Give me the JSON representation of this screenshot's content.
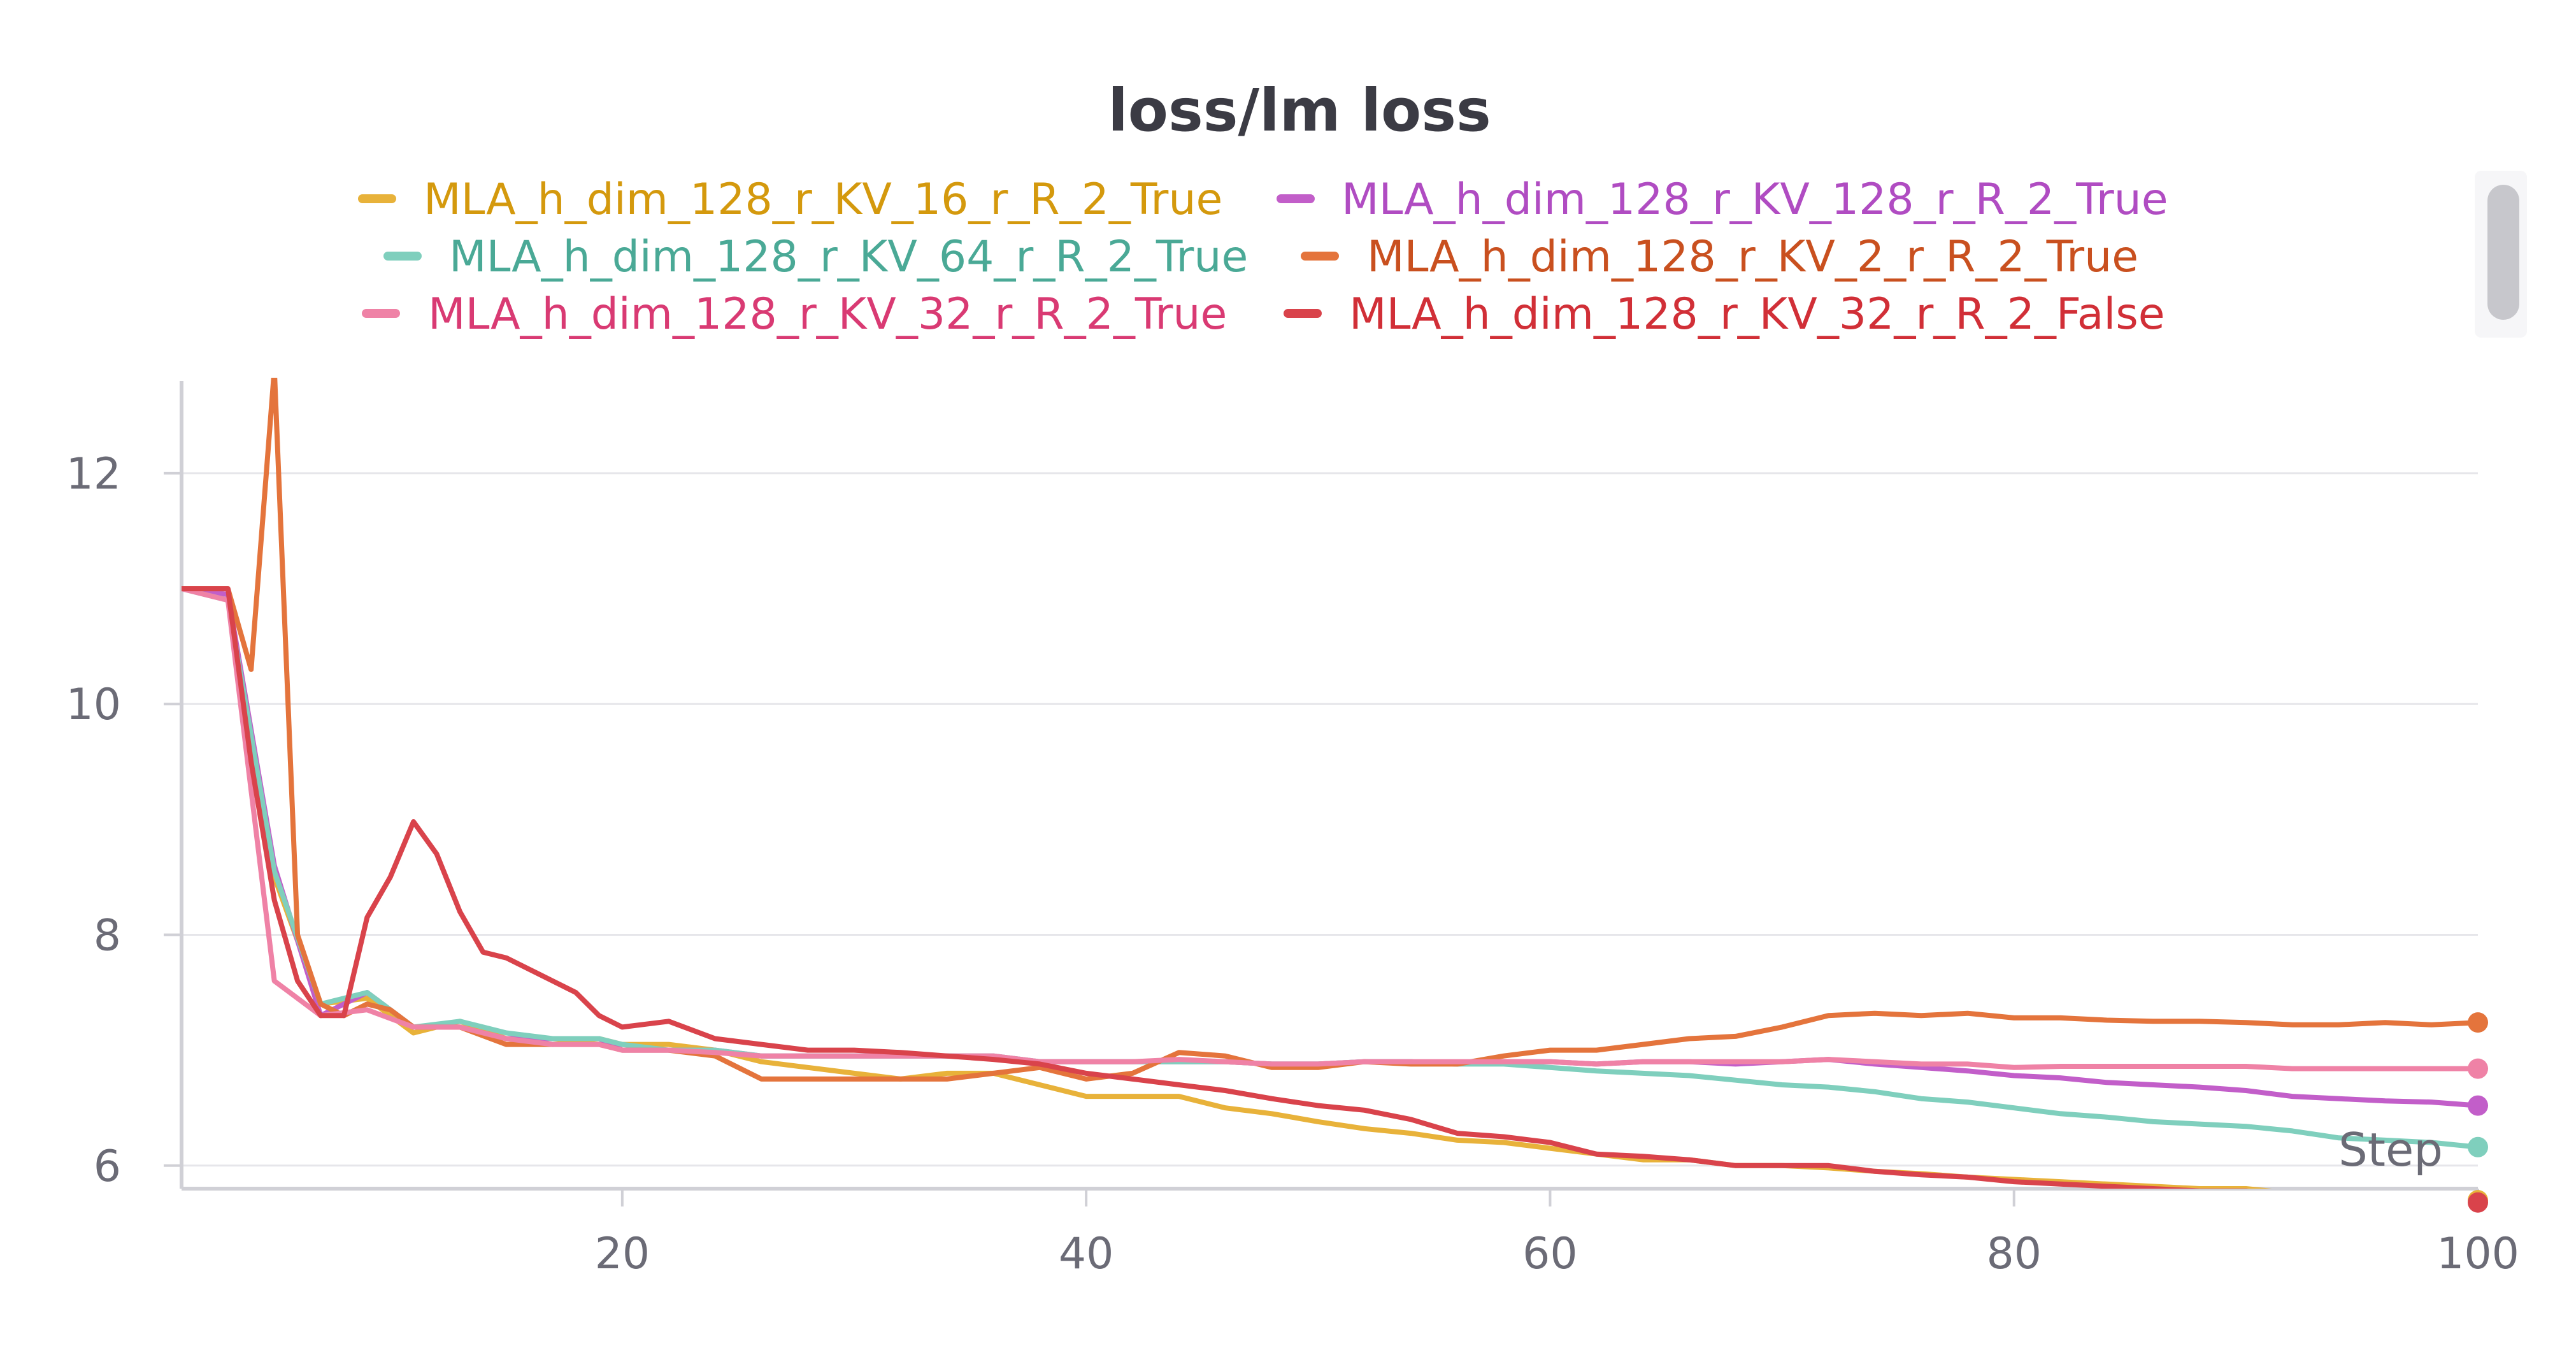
{
  "chart_data": {
    "type": "line",
    "title": "loss/lm loss",
    "xlabel": "Step",
    "ylabel": "",
    "xlim": [
      1,
      100
    ],
    "ylim": [
      5.8,
      12.8
    ],
    "xticks": [
      20,
      40,
      60,
      80,
      100
    ],
    "yticks": [
      6,
      8,
      10,
      12
    ],
    "grid": "horizontal",
    "legend_position": "top",
    "series": [
      {
        "name": "MLA_h_dim_128_r_KV_16_r_R_2_True",
        "color": "#e8b23a",
        "label_color": "#d4990d",
        "x": [
          1,
          3,
          5,
          7,
          9,
          11,
          13,
          15,
          17,
          19,
          20,
          22,
          24,
          26,
          28,
          30,
          32,
          34,
          36,
          38,
          40,
          42,
          44,
          46,
          48,
          50,
          52,
          54,
          56,
          58,
          60,
          62,
          64,
          66,
          68,
          70,
          72,
          74,
          76,
          78,
          80,
          82,
          84,
          86,
          88,
          90,
          92,
          94,
          96,
          98,
          100
        ],
        "values": [
          11.0,
          10.95,
          8.5,
          7.4,
          7.45,
          7.15,
          7.25,
          7.1,
          7.05,
          7.1,
          7.05,
          7.05,
          7.0,
          6.9,
          6.85,
          6.8,
          6.75,
          6.8,
          6.8,
          6.7,
          6.6,
          6.6,
          6.6,
          6.5,
          6.45,
          6.38,
          6.32,
          6.28,
          6.22,
          6.2,
          6.15,
          6.1,
          6.05,
          6.05,
          6.0,
          6.0,
          5.98,
          5.95,
          5.93,
          5.9,
          5.88,
          5.86,
          5.84,
          5.82,
          5.8,
          5.8,
          5.76,
          5.74,
          5.74,
          5.72,
          5.7
        ]
      },
      {
        "name": "MLA_h_dim_128_r_KV_128_r_R_2_True",
        "color": "#c25ec9",
        "label_color": "#b04cc2",
        "x": [
          1,
          3,
          5,
          7,
          9,
          11,
          13,
          15,
          17,
          19,
          20,
          22,
          24,
          26,
          28,
          30,
          32,
          34,
          36,
          38,
          40,
          42,
          44,
          46,
          48,
          50,
          52,
          54,
          56,
          58,
          60,
          62,
          64,
          66,
          68,
          70,
          72,
          74,
          76,
          78,
          80,
          82,
          84,
          86,
          88,
          90,
          92,
          94,
          96,
          98,
          100
        ],
        "values": [
          11.0,
          10.95,
          8.6,
          7.3,
          7.5,
          7.2,
          7.2,
          7.1,
          7.1,
          7.1,
          7.0,
          7.0,
          7.0,
          6.95,
          6.95,
          6.95,
          6.95,
          6.95,
          6.95,
          6.9,
          6.9,
          6.9,
          6.9,
          6.9,
          6.88,
          6.88,
          6.9,
          6.9,
          6.88,
          6.9,
          6.9,
          6.88,
          6.9,
          6.9,
          6.88,
          6.9,
          6.92,
          6.88,
          6.85,
          6.82,
          6.78,
          6.76,
          6.72,
          6.7,
          6.68,
          6.65,
          6.6,
          6.58,
          6.56,
          6.55,
          6.52
        ]
      },
      {
        "name": "MLA_h_dim_128_r_KV_64_r_R_2_True",
        "color": "#7fcfbd",
        "label_color": "#4aa996",
        "x": [
          1,
          3,
          5,
          7,
          9,
          11,
          13,
          15,
          17,
          19,
          20,
          22,
          24,
          26,
          28,
          30,
          32,
          34,
          36,
          38,
          40,
          42,
          44,
          46,
          48,
          50,
          52,
          54,
          56,
          58,
          60,
          62,
          64,
          66,
          68,
          70,
          72,
          74,
          76,
          78,
          80,
          82,
          84,
          86,
          88,
          90,
          92,
          94,
          96,
          98,
          100
        ],
        "values": [
          11.0,
          10.9,
          8.55,
          7.4,
          7.5,
          7.2,
          7.25,
          7.15,
          7.1,
          7.1,
          7.05,
          7.0,
          7.0,
          6.95,
          6.95,
          6.95,
          6.95,
          6.95,
          6.95,
          6.9,
          6.9,
          6.9,
          6.9,
          6.9,
          6.88,
          6.88,
          6.9,
          6.9,
          6.88,
          6.88,
          6.85,
          6.82,
          6.8,
          6.78,
          6.74,
          6.7,
          6.68,
          6.64,
          6.58,
          6.55,
          6.5,
          6.45,
          6.42,
          6.38,
          6.36,
          6.34,
          6.3,
          6.24,
          6.22,
          6.2,
          6.16
        ]
      },
      {
        "name": "MLA_h_dim_128_r_KV_2_r_R_2_True",
        "color": "#e4743c",
        "label_color": "#c9501f",
        "x": [
          1,
          2,
          3,
          4,
          5,
          6,
          7,
          8,
          9,
          10,
          11,
          13,
          15,
          17,
          19,
          20,
          22,
          24,
          26,
          28,
          30,
          32,
          34,
          36,
          38,
          40,
          42,
          44,
          46,
          48,
          50,
          52,
          54,
          56,
          58,
          60,
          62,
          64,
          66,
          68,
          70,
          72,
          74,
          76,
          78,
          80,
          82,
          84,
          86,
          88,
          90,
          92,
          94,
          96,
          98,
          100
        ],
        "values": [
          11.0,
          11.0,
          11.0,
          10.3,
          12.9,
          8.0,
          7.4,
          7.3,
          7.4,
          7.35,
          7.2,
          7.2,
          7.05,
          7.05,
          7.05,
          7.0,
          7.0,
          6.95,
          6.75,
          6.75,
          6.75,
          6.75,
          6.75,
          6.8,
          6.85,
          6.75,
          6.8,
          6.98,
          6.95,
          6.85,
          6.85,
          6.9,
          6.88,
          6.88,
          6.95,
          7.0,
          7.0,
          7.05,
          7.1,
          7.12,
          7.2,
          7.3,
          7.32,
          7.3,
          7.32,
          7.28,
          7.28,
          7.26,
          7.25,
          7.25,
          7.24,
          7.22,
          7.22,
          7.24,
          7.22,
          7.24
        ]
      },
      {
        "name": "MLA_h_dim_128_r_KV_32_r_R_2_True",
        "color": "#ef82a6",
        "label_color": "#d93a73",
        "x": [
          1,
          3,
          5,
          7,
          9,
          11,
          13,
          15,
          17,
          19,
          20,
          22,
          24,
          26,
          28,
          30,
          32,
          34,
          36,
          38,
          40,
          42,
          44,
          46,
          48,
          50,
          52,
          54,
          56,
          58,
          60,
          62,
          64,
          66,
          68,
          70,
          72,
          74,
          76,
          78,
          80,
          82,
          84,
          86,
          88,
          90,
          92,
          94,
          96,
          98,
          100
        ],
        "values": [
          11.0,
          10.9,
          7.6,
          7.3,
          7.35,
          7.2,
          7.2,
          7.1,
          7.05,
          7.05,
          7.0,
          7.0,
          6.98,
          6.95,
          6.95,
          6.95,
          6.95,
          6.95,
          6.95,
          6.9,
          6.9,
          6.9,
          6.92,
          6.9,
          6.88,
          6.88,
          6.9,
          6.9,
          6.9,
          6.9,
          6.9,
          6.88,
          6.9,
          6.9,
          6.9,
          6.9,
          6.92,
          6.9,
          6.88,
          6.88,
          6.85,
          6.86,
          6.86,
          6.86,
          6.86,
          6.86,
          6.84,
          6.84,
          6.84,
          6.84,
          6.84
        ]
      },
      {
        "name": "MLA_h_dim_128_r_KV_32_r_R_2_False",
        "color": "#d9434b",
        "label_color": "#d12f37",
        "x": [
          1,
          2,
          3,
          4,
          5,
          6,
          7,
          8,
          9,
          10,
          11,
          12,
          13,
          14,
          15,
          16,
          17,
          18,
          19,
          20,
          22,
          24,
          26,
          28,
          30,
          32,
          34,
          36,
          38,
          40,
          42,
          44,
          46,
          48,
          50,
          52,
          54,
          56,
          58,
          60,
          62,
          64,
          66,
          68,
          70,
          72,
          74,
          76,
          78,
          80,
          82,
          84,
          86,
          88,
          90,
          92,
          94,
          96,
          98,
          100
        ],
        "values": [
          11.0,
          11.0,
          11.0,
          9.5,
          8.3,
          7.6,
          7.3,
          7.3,
          8.15,
          8.5,
          8.98,
          8.7,
          8.2,
          7.85,
          7.8,
          7.7,
          7.6,
          7.5,
          7.3,
          7.2,
          7.25,
          7.1,
          7.05,
          7.0,
          7.0,
          6.98,
          6.95,
          6.92,
          6.88,
          6.8,
          6.75,
          6.7,
          6.65,
          6.58,
          6.52,
          6.48,
          6.4,
          6.28,
          6.25,
          6.2,
          6.1,
          6.08,
          6.05,
          6.0,
          6.0,
          6.0,
          5.95,
          5.92,
          5.9,
          5.86,
          5.84,
          5.82,
          5.8,
          5.78,
          5.78,
          5.74,
          5.74,
          5.74,
          5.72,
          5.68
        ]
      }
    ]
  }
}
